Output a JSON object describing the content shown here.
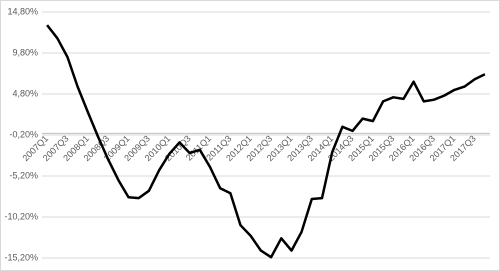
{
  "chart_data": {
    "type": "line",
    "categories": [
      "2007Q1",
      null,
      "2007Q3",
      null,
      "2008Q1",
      null,
      "2008Q3",
      null,
      "2009Q1",
      null,
      "2009Q3",
      null,
      "2010Q1",
      null,
      "2010Q3",
      null,
      "2011Q1",
      null,
      "2011Q3",
      null,
      "2012Q1",
      null,
      "2012Q3",
      null,
      "2013Q1",
      null,
      "2013Q3",
      null,
      "2014Q1",
      null,
      "2014Q3",
      null,
      "2015Q1",
      null,
      "2015Q3",
      null,
      "2016Q1",
      null,
      "2016Q3",
      null,
      "2017Q1",
      null,
      "2017Q3",
      null
    ],
    "values": [
      13.2,
      11.6,
      9.3,
      5.7,
      2.6,
      -0.4,
      -3.2,
      -5.7,
      -7.8,
      -7.9,
      -7.0,
      -4.5,
      -2.5,
      -1.1,
      -2.4,
      -2.0,
      -4.1,
      -6.7,
      -7.3,
      -11.2,
      -12.5,
      -14.3,
      -15.1,
      -12.8,
      -14.3,
      -12.0,
      -8.0,
      -7.9,
      -2.3,
      0.8,
      0.3,
      1.8,
      1.5,
      3.9,
      4.4,
      4.2,
      6.3,
      3.9,
      4.1,
      4.6,
      5.3,
      5.7,
      6.6,
      7.2
    ],
    "color": "#000000",
    "ylim": [
      -15.2,
      14.8
    ],
    "yticks": [
      {
        "value": 14.8,
        "label": "14,80%"
      },
      {
        "value": 9.8,
        "label": "9,80%"
      },
      {
        "value": 4.8,
        "label": "4,80%"
      },
      {
        "value": -0.2,
        "label": "-0,20%"
      },
      {
        "value": -5.2,
        "label": "-5,20%"
      },
      {
        "value": -10.2,
        "label": "-10,20%"
      },
      {
        "value": -15.2,
        "label": "-15,20%"
      }
    ],
    "grid": true
  }
}
